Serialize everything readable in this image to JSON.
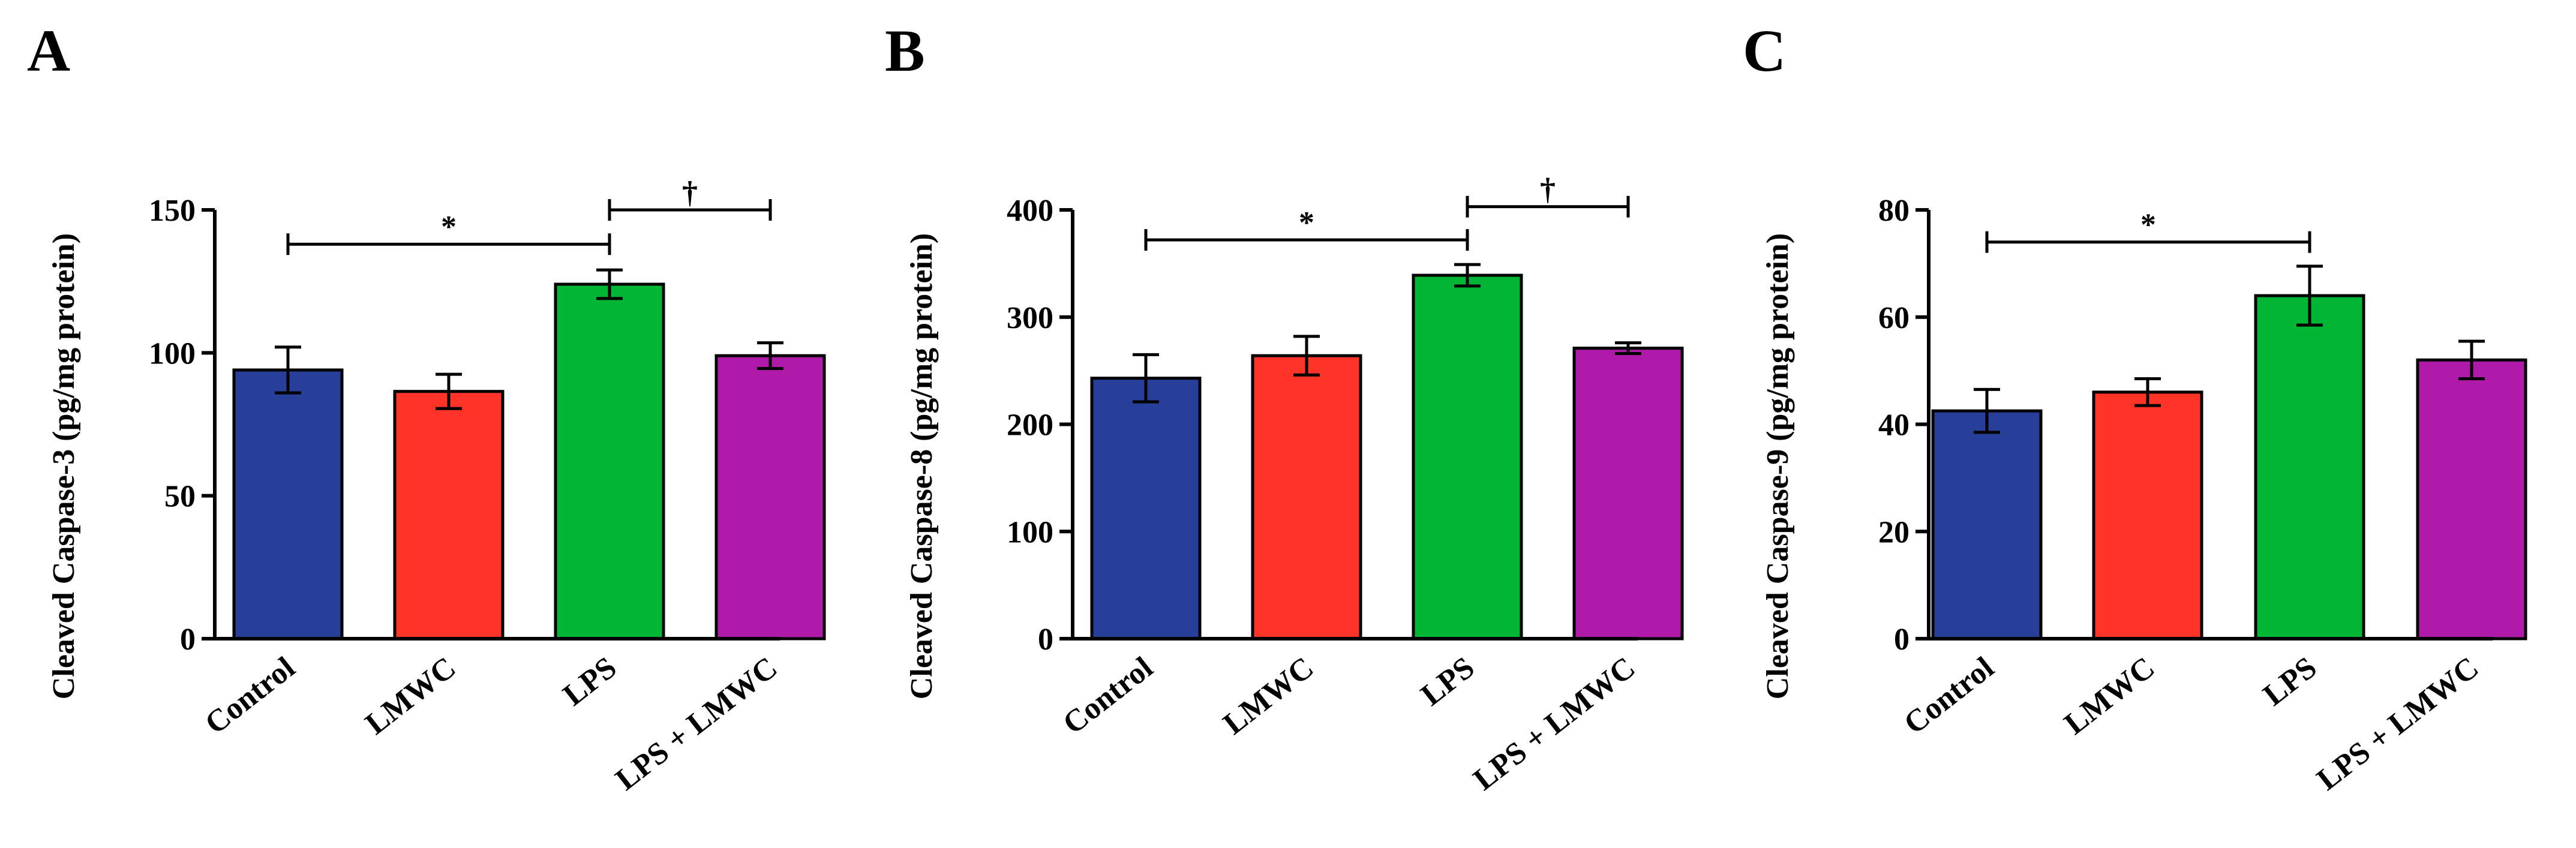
{
  "figure": {
    "background": "#ffffff"
  },
  "chart_data": [
    {
      "panel": "A",
      "type": "bar",
      "ylabel": "Cleaved Caspase-3 (pg/mg protein)",
      "xlabel": "",
      "categories": [
        "Control",
        "LMWC",
        "LPS",
        "LPS + LMWC"
      ],
      "values": [
        94,
        86.5,
        124,
        99
      ],
      "errors": [
        8,
        6,
        5,
        4.5
      ],
      "colors": [
        "#283f9a",
        "#ff3427",
        "#00b634",
        "#b01aa8"
      ],
      "ylim": [
        0,
        150
      ],
      "yticks": [
        0,
        50,
        100,
        150
      ],
      "significance": [
        {
          "from": 0,
          "to": 2,
          "level": 138,
          "symbol": "*"
        },
        {
          "from": 2,
          "to": 3,
          "level": 150,
          "symbol": "†"
        }
      ]
    },
    {
      "panel": "B",
      "type": "bar",
      "ylabel": "Cleaved Caspase-8 (pg/mg protein)",
      "xlabel": "",
      "categories": [
        "Control",
        "LMWC",
        "LPS",
        "LPS + LMWC"
      ],
      "values": [
        243,
        264,
        339,
        271
      ],
      "errors": [
        22,
        18,
        10,
        5
      ],
      "colors": [
        "#283f9a",
        "#ff3427",
        "#00b634",
        "#b01aa8"
      ],
      "ylim": [
        0,
        400
      ],
      "yticks": [
        0,
        100,
        200,
        300,
        400
      ],
      "significance": [
        {
          "from": 0,
          "to": 2,
          "level": 372,
          "symbol": "*"
        },
        {
          "from": 2,
          "to": 3,
          "level": 403,
          "symbol": "†"
        }
      ]
    },
    {
      "panel": "C",
      "type": "bar",
      "ylabel": "Cleaved Caspase-9 (pg/mg protein)",
      "xlabel": "",
      "categories": [
        "Control",
        "LMWC",
        "LPS",
        "LPS + LMWC"
      ],
      "values": [
        42.5,
        46,
        64,
        52
      ],
      "errors": [
        4,
        2.5,
        5.5,
        3.5
      ],
      "colors": [
        "#283f9a",
        "#ff3427",
        "#00b634",
        "#b01aa8"
      ],
      "ylim": [
        0,
        80
      ],
      "yticks": [
        0,
        20,
        40,
        60,
        80
      ],
      "significance": [
        {
          "from": 0,
          "to": 2,
          "level": 74,
          "symbol": "*"
        }
      ]
    }
  ]
}
